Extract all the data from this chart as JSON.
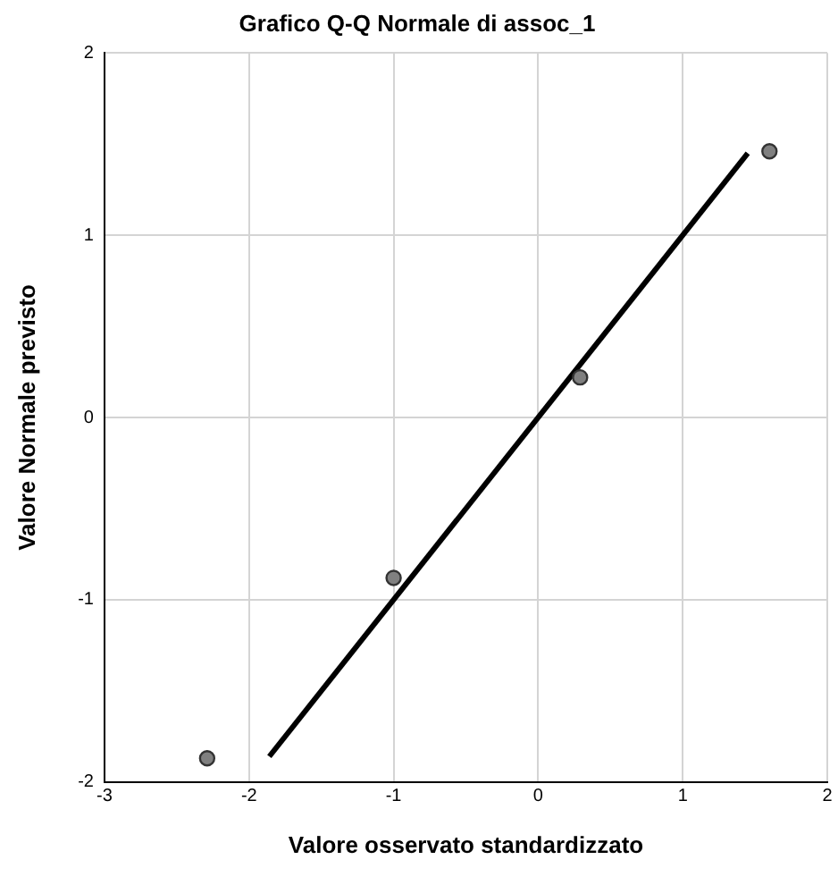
{
  "chart_data": {
    "type": "scatter",
    "title": "Grafico Q-Q Normale di assoc_1",
    "xlabel": "Valore osservato standardizzato",
    "ylabel": "Valore Normale previsto",
    "xlim": [
      -3,
      2
    ],
    "xticks": [
      -3,
      -2,
      -1,
      0,
      1,
      2
    ],
    "ylim": [
      -2,
      2
    ],
    "yticks": [
      -2,
      -1,
      0,
      1,
      2
    ],
    "grid": true,
    "legend": false,
    "marker": "circle",
    "series": [
      {
        "color": "#808080",
        "x": [
          -2.29,
          -1.0,
          0.29,
          1.6
        ],
        "values": [
          -1.87,
          -0.88,
          0.22,
          1.46
        ]
      },
      {
        "type": "line",
        "color": "#000000",
        "marker": "none",
        "line_style": "solid",
        "x": [
          -1.86,
          1.45
        ],
        "values": [
          -1.86,
          1.45
        ]
      }
    ]
  }
}
